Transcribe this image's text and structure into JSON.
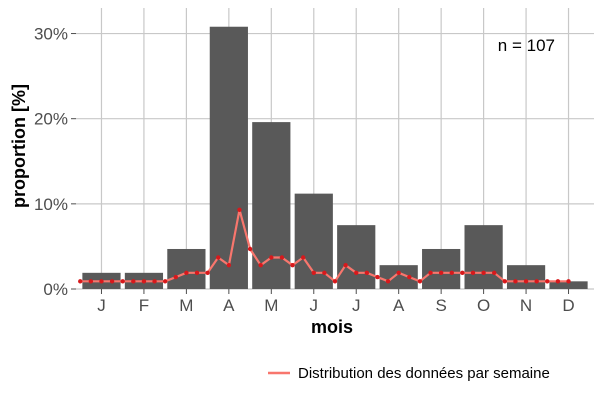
{
  "chart_data": {
    "type": "bar",
    "categories": [
      "J",
      "F",
      "M",
      "A",
      "M",
      "J",
      "J",
      "A",
      "S",
      "O",
      "N",
      "D"
    ],
    "values": [
      1.9,
      1.9,
      4.7,
      30.8,
      19.6,
      11.2,
      7.5,
      2.8,
      4.7,
      7.5,
      2.8,
      0.9
    ],
    "ylim": [
      0,
      33
    ],
    "yticks": [
      0,
      10,
      20,
      30
    ],
    "ytick_labels": [
      "0%",
      "10%",
      "20%",
      "30%"
    ],
    "xlabel": "mois",
    "ylabel": "proportion [%]",
    "annotation": "n = 107",
    "grid": true,
    "legend_position": "bottom-right",
    "bar_color": "#595959",
    "series": [
      {
        "name": "Distribution des données par semaine",
        "color": "#f8766d",
        "point_color": "#d7191c",
        "x": [
          0.5,
          0.75,
          1.0,
          1.25,
          1.5,
          1.75,
          2.0,
          2.25,
          2.5,
          2.75,
          3.0,
          3.25,
          3.5,
          3.75,
          4.0,
          4.25,
          4.5,
          4.75,
          5.0,
          5.25,
          5.5,
          5.75,
          6.0,
          6.25,
          6.5,
          6.75,
          7.0,
          7.25,
          7.5,
          7.75,
          8.0,
          8.25,
          8.5,
          8.75,
          9.0,
          9.25,
          9.5,
          9.75,
          10.0,
          10.25,
          10.5,
          10.75,
          11.0,
          11.25,
          11.5,
          11.75,
          12.0
        ],
        "values": [
          0.9,
          0.9,
          0.9,
          0.9,
          0.9,
          0.9,
          0.9,
          0.9,
          0.9,
          1.4,
          1.9,
          1.9,
          1.9,
          3.7,
          2.8,
          9.3,
          4.7,
          2.8,
          3.7,
          3.7,
          2.8,
          3.7,
          1.9,
          1.9,
          0.9,
          2.8,
          1.9,
          1.9,
          1.4,
          0.9,
          1.9,
          1.4,
          0.9,
          1.9,
          1.9,
          1.9,
          1.9,
          1.9,
          1.9,
          1.9,
          0.9,
          0.9,
          0.9,
          0.9,
          0.9,
          0.9,
          0.9
        ]
      }
    ]
  }
}
